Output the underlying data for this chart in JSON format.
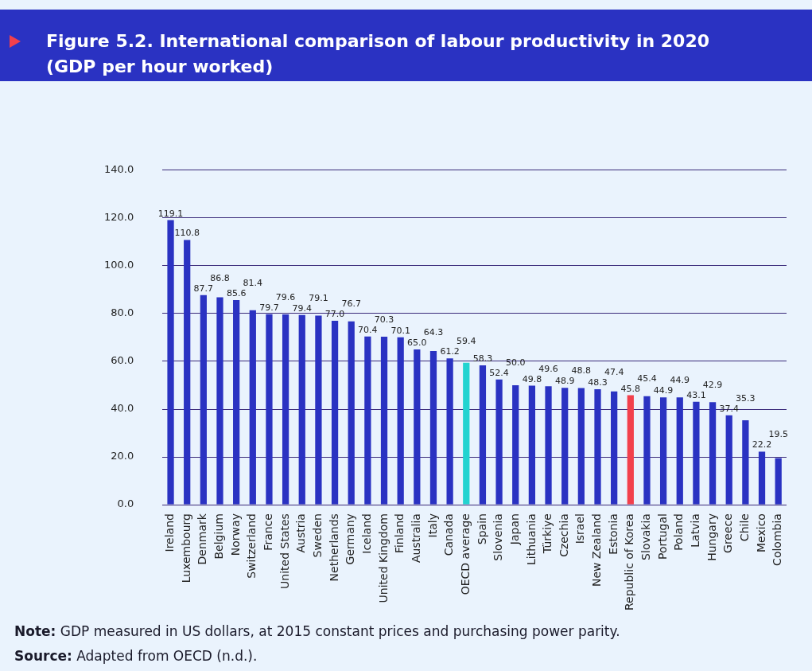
{
  "chart_data": {
    "type": "bar",
    "title": "Figure 5.2. International comparison of labour productivity in 2020 (GDP per hour worked)",
    "categories": [
      "Ireland",
      "Luxembourg",
      "Denmark",
      "Belgium",
      "Norway",
      "Switzerland",
      "France",
      "United States",
      "Austria",
      "Sweden",
      "Netherlands",
      "Germany",
      "Iceland",
      "United Kingdom",
      "Finland",
      "Australia",
      "Italy",
      "Canada",
      "OECD average",
      "Spain",
      "Slovenia",
      "Japan",
      "Lithuania",
      "Türkiye",
      "Czechia",
      "Israel",
      "New Zealand",
      "Estonia",
      "Republic of Korea",
      "Slovakia",
      "Portugal",
      "Poland",
      "Latvia",
      "Hungary",
      "Greece",
      "Chile",
      "Mexico",
      "Colombia"
    ],
    "values": [
      119.1,
      110.8,
      87.7,
      86.8,
      85.6,
      81.4,
      79.7,
      79.6,
      79.4,
      79.1,
      77.0,
      76.7,
      70.4,
      70.3,
      70.1,
      65.0,
      64.3,
      61.2,
      59.4,
      58.3,
      52.4,
      50.0,
      49.8,
      49.6,
      48.9,
      48.8,
      48.3,
      47.4,
      45.8,
      45.4,
      44.9,
      44.9,
      43.1,
      42.9,
      37.4,
      35.3,
      22.2,
      19.5
    ],
    "value_labels": [
      "119.1",
      "110.8",
      "87.7",
      "86.8",
      "85.6",
      "81.4",
      "79.7",
      "79.6",
      "79.4",
      "79.1",
      "77.0",
      "76.7",
      "70.4",
      "70.3",
      "70.1",
      "65.0",
      "64.3",
      "61.2",
      "59.4",
      "58.3",
      "52.4",
      "50.0",
      "49.8",
      "49.6",
      "48.9",
      "48.8",
      "48.3",
      "47.4",
      "45.8",
      "45.4",
      "44.9",
      "44.9",
      "43.1",
      "42.9",
      "37.4",
      "35.3",
      "22.2",
      "19.5"
    ],
    "colors": [
      "#2a32c2",
      "#2a32c2",
      "#2a32c2",
      "#2a32c2",
      "#2a32c2",
      "#2a32c2",
      "#2a32c2",
      "#2a32c2",
      "#2a32c2",
      "#2a32c2",
      "#2a32c2",
      "#2a32c2",
      "#2a32c2",
      "#2a32c2",
      "#2a32c2",
      "#2a32c2",
      "#2a32c2",
      "#2a32c2",
      "#22d3d0",
      "#2a32c2",
      "#2a32c2",
      "#2a32c2",
      "#2a32c2",
      "#2a32c2",
      "#2a32c2",
      "#2a32c2",
      "#2a32c2",
      "#2a32c2",
      "#f2404c",
      "#2a32c2",
      "#2a32c2",
      "#2a32c2",
      "#2a32c2",
      "#2a32c2",
      "#2a32c2",
      "#2a32c2",
      "#2a32c2",
      "#2a32c2"
    ],
    "ylim": [
      0,
      140
    ],
    "yticks": [
      {
        "value": 0,
        "label": "0.0"
      },
      {
        "value": 20,
        "label": "20.0"
      },
      {
        "value": 40,
        "label": "40.0"
      },
      {
        "value": 60,
        "label": "60.0"
      },
      {
        "value": 80,
        "label": "80.0"
      },
      {
        "value": 100,
        "label": "100.0"
      },
      {
        "value": 120,
        "label": "120.0"
      },
      {
        "value": 140,
        "label": "140.0"
      }
    ],
    "grid": "y",
    "legend": false,
    "annotations": [
      "Note: GDP measured in US dollars, at 2015 constant prices and purchasing power parity.",
      "Source: Adapted from OECD (n.d.)."
    ]
  }
}
